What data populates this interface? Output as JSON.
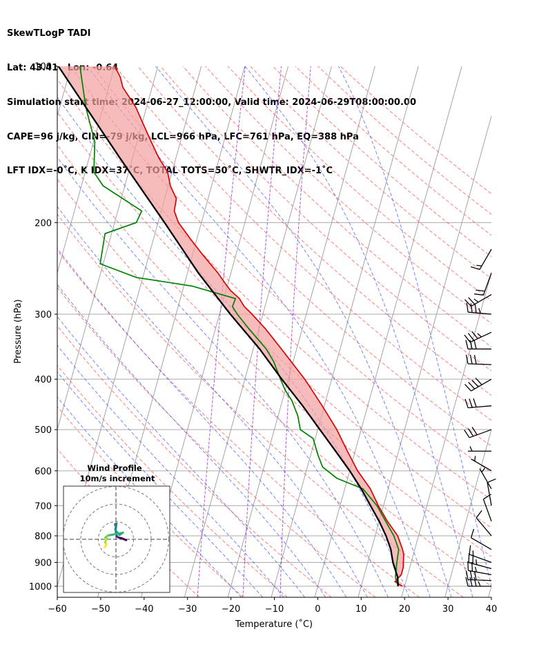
{
  "header": {
    "line1": "SkewTLogP TADI",
    "line2": "Lat: 43.41   Lon: -0.64",
    "line3": "Simulation start time: 2024-06-27_12:00:00, Valid time: 2024-06-29T08:00:00.00",
    "line4": "CAPE=96 j/kg, CIN=-79 j/kg, LCL=966 hPa, LFC=761 hPa, EQ=388 hPa",
    "line5": "LFT IDX=-0˚C, K IDX=37˚C, TOTAL TOTS=50˚C, SHWTR_IDX=-1˚C"
  },
  "colors": {
    "temperature": "#e00000",
    "dewpoint": "#008000",
    "parcel": "#000000",
    "cape_fill": "#7aaed4",
    "cin_fill": "#f2a0a0",
    "dry_adiabat": "#ff5050",
    "moist_adiabat": "#4a5cff",
    "mixing_ratio": "#9b30c8",
    "isotherm": "#9a9a9a",
    "isobar": "#aaaaaa"
  },
  "chart_data": {
    "type": "line",
    "title": "SkewTLogP TADI",
    "xlabel": "Temperature (˚C)",
    "ylabel": "Pressure (hPa)",
    "xlim": [
      -60,
      40
    ],
    "ylim": [
      1050,
      100
    ],
    "x_ticks": [
      -60,
      -50,
      -40,
      -30,
      -20,
      -10,
      0,
      10,
      20,
      30,
      40
    ],
    "y_ticks": [
      1000,
      900,
      800,
      700,
      600,
      500,
      400,
      300,
      200,
      100
    ],
    "skew_deg_per_log": 33.2,
    "series": [
      {
        "name": "Temperature",
        "points": [
          [
            1000,
            19.5
          ],
          [
            980,
            17.5
          ],
          [
            950,
            18.5
          ],
          [
            920,
            18.5
          ],
          [
            900,
            18.2
          ],
          [
            870,
            17.8
          ],
          [
            850,
            17.2
          ],
          [
            800,
            15.2
          ],
          [
            750,
            11.9
          ],
          [
            700,
            8.8
          ],
          [
            650,
            5.9
          ],
          [
            600,
            1.8
          ],
          [
            550,
            -1.8
          ],
          [
            500,
            -5.6
          ],
          [
            450,
            -10.5
          ],
          [
            400,
            -16.2
          ],
          [
            350,
            -23.5
          ],
          [
            320,
            -28.5
          ],
          [
            300,
            -32.5
          ],
          [
            290,
            -34.8
          ],
          [
            280,
            -36.4
          ],
          [
            270,
            -39.0
          ],
          [
            260,
            -41.0
          ],
          [
            250,
            -43.0
          ],
          [
            230,
            -47.8
          ],
          [
            215,
            -51.5
          ],
          [
            200,
            -55.3
          ],
          [
            190,
            -57.0
          ],
          [
            180,
            -57.3
          ],
          [
            170,
            -59.5
          ],
          [
            160,
            -61.0
          ],
          [
            150,
            -64.0
          ],
          [
            140,
            -66.7
          ],
          [
            130,
            -69.5
          ],
          [
            120,
            -72.5
          ],
          [
            110,
            -76.7
          ],
          [
            105,
            -78.0
          ],
          [
            100,
            -80.0
          ]
        ]
      },
      {
        "name": "Dewpoint",
        "points": [
          [
            1000,
            18.5
          ],
          [
            960,
            17.3
          ],
          [
            900,
            16.7
          ],
          [
            850,
            16.3
          ],
          [
            800,
            14.3
          ],
          [
            750,
            11.5
          ],
          [
            700,
            8.5
          ],
          [
            650,
            4.2
          ],
          [
            620,
            -2.5
          ],
          [
            590,
            -6.5
          ],
          [
            560,
            -8.3
          ],
          [
            520,
            -10.5
          ],
          [
            500,
            -14.0
          ],
          [
            470,
            -15.5
          ],
          [
            440,
            -17.8
          ],
          [
            420,
            -20.0
          ],
          [
            400,
            -21.8
          ],
          [
            370,
            -24.5
          ],
          [
            350,
            -27.0
          ],
          [
            320,
            -32.3
          ],
          [
            300,
            -35.9
          ],
          [
            290,
            -37.5
          ],
          [
            280,
            -37.3
          ],
          [
            265,
            -48.0
          ],
          [
            255,
            -61.5
          ],
          [
            240,
            -70.7
          ],
          [
            210,
            -71.5
          ],
          [
            200,
            -65.0
          ],
          [
            190,
            -64.5
          ],
          [
            170,
            -75.0
          ],
          [
            160,
            -78.0
          ],
          [
            140,
            -79.7
          ],
          [
            120,
            -84.0
          ],
          [
            100,
            -88.0
          ]
        ]
      },
      {
        "name": "Parcel",
        "points": [
          [
            1000,
            18.5
          ],
          [
            960,
            17.8
          ],
          [
            900,
            15.8
          ],
          [
            850,
            14.5
          ],
          [
            800,
            12.5
          ],
          [
            750,
            10.0
          ],
          [
            700,
            7.0
          ],
          [
            650,
            3.8
          ],
          [
            600,
            0.0
          ],
          [
            550,
            -4.5
          ],
          [
            500,
            -9.5
          ],
          [
            450,
            -15.0
          ],
          [
            400,
            -21.5
          ],
          [
            350,
            -28.5
          ],
          [
            300,
            -37.5
          ],
          [
            250,
            -47.5
          ],
          [
            200,
            -58.5
          ],
          [
            150,
            -73.0
          ],
          [
            100,
            -93.0
          ]
        ]
      }
    ],
    "hodograph": {
      "title": "Wind Profile",
      "subtitle": "10m/s increment",
      "rings_ms": [
        10,
        20,
        30
      ],
      "trace_uv": [
        [
          5.8,
          -0.5
        ],
        [
          3.5,
          0.5
        ],
        [
          1.5,
          1.0
        ],
        [
          0.5,
          1.5
        ],
        [
          0.2,
          3.0
        ],
        [
          -0.3,
          5.5
        ],
        [
          0.0,
          7.0
        ],
        [
          -0.5,
          8.5
        ],
        [
          0.3,
          9.0
        ],
        [
          -0.2,
          5.0
        ],
        [
          2.0,
          2.5
        ],
        [
          4.0,
          3.8
        ],
        [
          -2.5,
          2.5
        ],
        [
          -4.5,
          2.2
        ],
        [
          -6.0,
          1.0
        ],
        [
          -5.0,
          0.5
        ],
        [
          -6.2,
          -1.5
        ],
        [
          -5.5,
          -3.0
        ],
        [
          -6.3,
          -4.5
        ]
      ]
    },
    "wind_barbs": [
      {
        "p": 1000,
        "speed_kt": 35,
        "dir_deg": 270
      },
      {
        "p": 975,
        "speed_kt": 30,
        "dir_deg": 272
      },
      {
        "p": 950,
        "speed_kt": 25,
        "dir_deg": 280
      },
      {
        "p": 925,
        "speed_kt": 25,
        "dir_deg": 285
      },
      {
        "p": 900,
        "speed_kt": 15,
        "dir_deg": 290
      },
      {
        "p": 850,
        "speed_kt": 10,
        "dir_deg": 300
      },
      {
        "p": 800,
        "speed_kt": 10,
        "dir_deg": 320
      },
      {
        "p": 750,
        "speed_kt": 10,
        "dir_deg": 340
      },
      {
        "p": 700,
        "speed_kt": 10,
        "dir_deg": 350
      },
      {
        "p": 650,
        "speed_kt": 5,
        "dir_deg": 330
      },
      {
        "p": 600,
        "speed_kt": 5,
        "dir_deg": 300
      },
      {
        "p": 550,
        "speed_kt": 5,
        "dir_deg": 270
      },
      {
        "p": 500,
        "speed_kt": 30,
        "dir_deg": 250
      },
      {
        "p": 450,
        "speed_kt": 30,
        "dir_deg": 265
      },
      {
        "p": 400,
        "speed_kt": 40,
        "dir_deg": 240
      },
      {
        "p": 375,
        "speed_kt": 30,
        "dir_deg": 272
      },
      {
        "p": 350,
        "speed_kt": 30,
        "dir_deg": 270
      },
      {
        "p": 325,
        "speed_kt": 35,
        "dir_deg": 245
      },
      {
        "p": 300,
        "speed_kt": 35,
        "dir_deg": 275
      },
      {
        "p": 275,
        "speed_kt": 25,
        "dir_deg": 240
      },
      {
        "p": 250,
        "speed_kt": 20,
        "dir_deg": 200
      },
      {
        "p": 225,
        "speed_kt": 15,
        "dir_deg": 210
      }
    ]
  }
}
